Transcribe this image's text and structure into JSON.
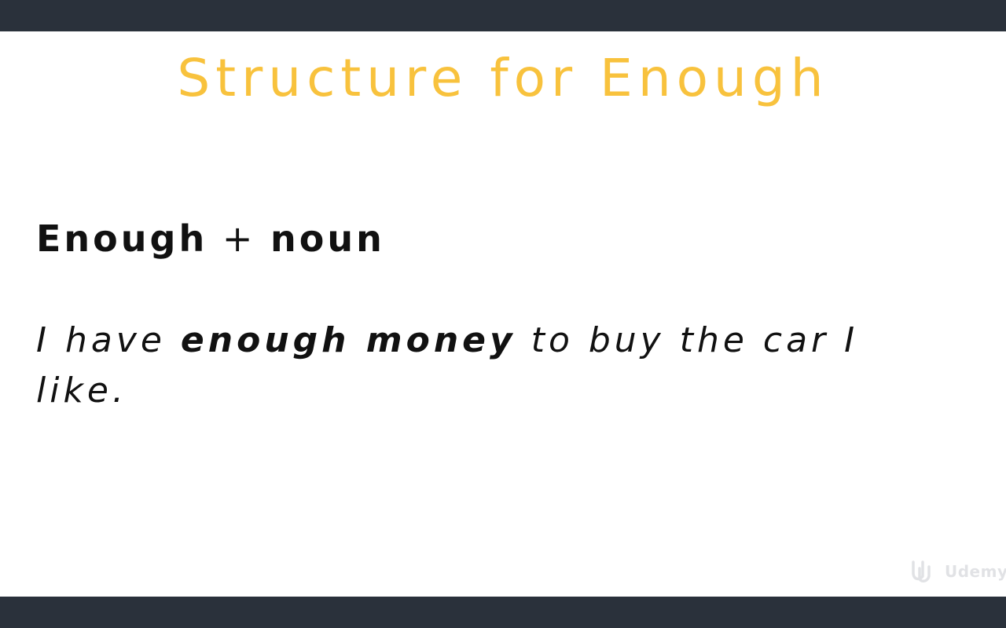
{
  "slide": {
    "title": "Structure for Enough",
    "formula": {
      "part1": "Enough",
      "operator": "+",
      "part2": "noun"
    },
    "example": {
      "before": "I have ",
      "emphasis": "enough money",
      "after": " to buy the car I like."
    },
    "watermark": {
      "text": "Udemy",
      "icon": "udemy-logo-icon"
    }
  },
  "colors": {
    "title": "#f8c23d",
    "frame": "#2a313b",
    "background": "#ffffff",
    "text": "#111111"
  }
}
